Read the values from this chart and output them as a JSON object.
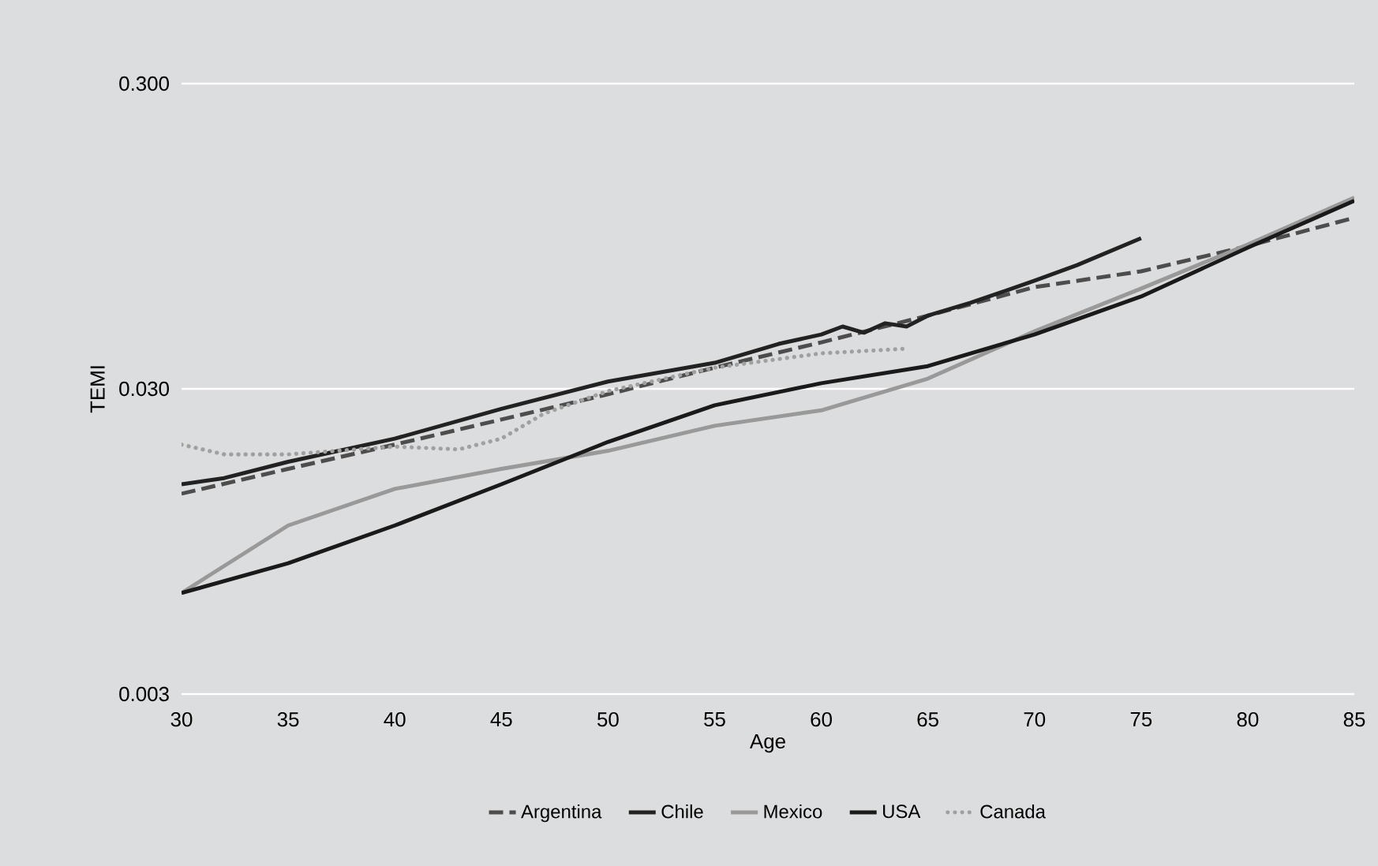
{
  "chart_data": {
    "type": "line",
    "xlabel": "Age",
    "ylabel": "TEMI",
    "log": "y",
    "grid": "y",
    "legend": "bottom",
    "xlim": [
      30,
      85
    ],
    "ylim": [
      0.003,
      0.3
    ],
    "xticks": [
      30,
      35,
      40,
      45,
      50,
      55,
      60,
      65,
      70,
      75,
      80,
      85
    ],
    "yticks": [
      {
        "value": 0.003,
        "label": "0.003"
      },
      {
        "value": 0.03,
        "label": "0.030"
      },
      {
        "value": 0.3,
        "label": "0.300"
      }
    ],
    "series": [
      {
        "name": "Argentina",
        "color": "#4d4d4d",
        "line_style": "dashed",
        "x": [
          30,
          35,
          40,
          45,
          50,
          55,
          60,
          65,
          70,
          75,
          80,
          85
        ],
        "values": [
          0.0136,
          0.0164,
          0.0197,
          0.0238,
          0.0288,
          0.0352,
          0.0426,
          0.0521,
          0.0646,
          0.0728,
          0.0881,
          0.109
        ]
      },
      {
        "name": "Chile",
        "color": "#222222",
        "line_style": "solid",
        "x": [
          30,
          32,
          35,
          40,
          45,
          50,
          55,
          58,
          60,
          61,
          62,
          63,
          64,
          65,
          67,
          70,
          72,
          75
        ],
        "values": [
          0.0146,
          0.0153,
          0.0173,
          0.0206,
          0.0258,
          0.0317,
          0.0365,
          0.0421,
          0.0452,
          0.048,
          0.0458,
          0.0492,
          0.048,
          0.0521,
          0.0574,
          0.0678,
          0.0763,
          0.0935
        ]
      },
      {
        "name": "Mexico",
        "color": "#999999",
        "line_style": "solid",
        "x": [
          30,
          35,
          40,
          45,
          50,
          55,
          60,
          65,
          70,
          75,
          80,
          85
        ],
        "values": [
          0.00643,
          0.0107,
          0.0141,
          0.0164,
          0.0188,
          0.0227,
          0.0255,
          0.0324,
          0.0463,
          0.0639,
          0.0891,
          0.127
        ]
      },
      {
        "name": "USA",
        "color": "#1a1a1a",
        "line_style": "solid",
        "x": [
          30,
          35,
          40,
          45,
          50,
          55,
          60,
          65,
          70,
          75,
          80,
          85
        ],
        "values": [
          0.00643,
          0.00805,
          0.0107,
          0.0146,
          0.0201,
          0.0265,
          0.0313,
          0.0356,
          0.0452,
          0.0602,
          0.087,
          0.124
        ]
      },
      {
        "name": "Canada",
        "color": "#a0a0a0",
        "line_style": "dotted",
        "x": [
          30,
          32,
          35,
          40,
          43,
          45,
          47,
          50,
          55,
          60,
          64
        ],
        "values": [
          0.0197,
          0.0183,
          0.0183,
          0.0194,
          0.019,
          0.0206,
          0.0249,
          0.0295,
          0.0352,
          0.0392,
          0.0406
        ]
      }
    ]
  }
}
